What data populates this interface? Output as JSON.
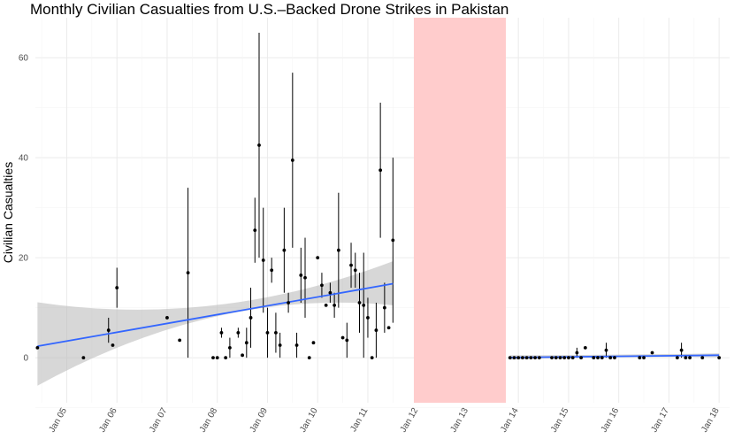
{
  "chart_data": {
    "type": "scatter",
    "title": "Monthly Civilian Casualties from U.S.–Backed Drone Strikes in Pakistan",
    "xlabel": "",
    "ylabel": "Civilian Casualties",
    "xlim": [
      "2004-06",
      "2018-03"
    ],
    "ylim": [
      -9,
      68
    ],
    "y_ticks": [
      0,
      20,
      40,
      60
    ],
    "x_ticks": [
      {
        "date": "2005-01",
        "label": "Jan 05"
      },
      {
        "date": "2006-01",
        "label": "Jan 06"
      },
      {
        "date": "2007-01",
        "label": "Jan 07"
      },
      {
        "date": "2008-01",
        "label": "Jan 08"
      },
      {
        "date": "2009-01",
        "label": "Jan 09"
      },
      {
        "date": "2010-01",
        "label": "Jan 10"
      },
      {
        "date": "2011-01",
        "label": "Jan 11"
      },
      {
        "date": "2012-01",
        "label": "Jan 12"
      },
      {
        "date": "2013-01",
        "label": "Jan 13"
      },
      {
        "date": "2014-01",
        "label": "Jan 14"
      },
      {
        "date": "2015-01",
        "label": "Jan 15"
      },
      {
        "date": "2016-01",
        "label": "Jan 16"
      },
      {
        "date": "2017-01",
        "label": "Jan 17"
      },
      {
        "date": "2018-01",
        "label": "Jan 18"
      }
    ],
    "grid": true,
    "legend": "none",
    "shaded_period": {
      "from": "2011-12",
      "to": "2013-10",
      "color": "#ffcccc"
    },
    "colors": {
      "point": "#000000",
      "trend": "#3366ff",
      "ribbon": "#bdbdbd"
    },
    "points": [
      {
        "date": "2004-06",
        "y": 2
      },
      {
        "date": "2005-05",
        "y": 0
      },
      {
        "date": "2005-11",
        "y": 5.5,
        "lo": 3,
        "hi": 8
      },
      {
        "date": "2005-12",
        "y": 2.5
      },
      {
        "date": "2006-01",
        "y": 14,
        "lo": 10,
        "hi": 18
      },
      {
        "date": "2007-01",
        "y": 8
      },
      {
        "date": "2007-04",
        "y": 3.5
      },
      {
        "date": "2007-06",
        "y": 17,
        "lo": 0,
        "hi": 34
      },
      {
        "date": "2007-12",
        "y": 0
      },
      {
        "date": "2008-01",
        "y": 0
      },
      {
        "date": "2008-02",
        "y": 5,
        "lo": 4,
        "hi": 6
      },
      {
        "date": "2008-03",
        "y": 0
      },
      {
        "date": "2008-04",
        "y": 2,
        "lo": 0,
        "hi": 4
      },
      {
        "date": "2008-06",
        "y": 5,
        "lo": 4,
        "hi": 6
      },
      {
        "date": "2008-07",
        "y": 0.5
      },
      {
        "date": "2008-08",
        "y": 3,
        "lo": 0,
        "hi": 6
      },
      {
        "date": "2008-09",
        "y": 8,
        "lo": 2,
        "hi": 14
      },
      {
        "date": "2008-10",
        "y": 25.5,
        "lo": 19,
        "hi": 32
      },
      {
        "date": "2008-11",
        "y": 42.5,
        "lo": 20,
        "hi": 65
      },
      {
        "date": "2008-12",
        "y": 19.5,
        "lo": 9,
        "hi": 30
      },
      {
        "date": "2009-01",
        "y": 5,
        "lo": 0,
        "hi": 10
      },
      {
        "date": "2009-02",
        "y": 17.5,
        "lo": 15,
        "hi": 20
      },
      {
        "date": "2009-03",
        "y": 5,
        "lo": 1,
        "hi": 9
      },
      {
        "date": "2009-04",
        "y": 2.5,
        "lo": 0,
        "hi": 5
      },
      {
        "date": "2009-05",
        "y": 21.5,
        "lo": 13,
        "hi": 30
      },
      {
        "date": "2009-06",
        "y": 11,
        "lo": 9,
        "hi": 13
      },
      {
        "date": "2009-07",
        "y": 39.5,
        "lo": 22,
        "hi": 57
      },
      {
        "date": "2009-08",
        "y": 2.5,
        "lo": 0,
        "hi": 5
      },
      {
        "date": "2009-09",
        "y": 16.5,
        "lo": 11,
        "hi": 22
      },
      {
        "date": "2009-10",
        "y": 16,
        "lo": 8,
        "hi": 24
      },
      {
        "date": "2009-11",
        "y": 0
      },
      {
        "date": "2009-12",
        "y": 3
      },
      {
        "date": "2010-01",
        "y": 20
      },
      {
        "date": "2010-02",
        "y": 14.5,
        "lo": 12,
        "hi": 17
      },
      {
        "date": "2010-03",
        "y": 10.5
      },
      {
        "date": "2010-04",
        "y": 13,
        "lo": 11,
        "hi": 15
      },
      {
        "date": "2010-05",
        "y": 10.5,
        "lo": 8,
        "hi": 13
      },
      {
        "date": "2010-06",
        "y": 21.5,
        "lo": 10,
        "hi": 33
      },
      {
        "date": "2010-07",
        "y": 4
      },
      {
        "date": "2010-08",
        "y": 3.5,
        "lo": 0,
        "hi": 7
      },
      {
        "date": "2010-09",
        "y": 18.5,
        "lo": 14,
        "hi": 23
      },
      {
        "date": "2010-10",
        "y": 17.5,
        "lo": 14,
        "hi": 21
      },
      {
        "date": "2010-11",
        "y": 11,
        "lo": 5,
        "hi": 17
      },
      {
        "date": "2010-12",
        "y": 10.5,
        "lo": 0,
        "hi": 21
      },
      {
        "date": "2011-01",
        "y": 8,
        "lo": 4,
        "hi": 12
      },
      {
        "date": "2011-02",
        "y": 0
      },
      {
        "date": "2011-03",
        "y": 5.5,
        "lo": 0,
        "hi": 11
      },
      {
        "date": "2011-04",
        "y": 37.5,
        "lo": 24,
        "hi": 51
      },
      {
        "date": "2011-05",
        "y": 10,
        "lo": 5,
        "hi": 15
      },
      {
        "date": "2011-06",
        "y": 6
      },
      {
        "date": "2011-07",
        "y": 23.5,
        "lo": 7,
        "hi": 40
      },
      {
        "date": "2013-11",
        "y": 0
      },
      {
        "date": "2013-12",
        "y": 0
      },
      {
        "date": "2014-01",
        "y": 0
      },
      {
        "date": "2014-02",
        "y": 0
      },
      {
        "date": "2014-03",
        "y": 0
      },
      {
        "date": "2014-04",
        "y": 0
      },
      {
        "date": "2014-05",
        "y": 0
      },
      {
        "date": "2014-06",
        "y": 0
      },
      {
        "date": "2014-09",
        "y": 0
      },
      {
        "date": "2014-10",
        "y": 0
      },
      {
        "date": "2014-11",
        "y": 0
      },
      {
        "date": "2014-12",
        "y": 0
      },
      {
        "date": "2015-01",
        "y": 0
      },
      {
        "date": "2015-02",
        "y": 0
      },
      {
        "date": "2015-03",
        "y": 1,
        "lo": 0,
        "hi": 2
      },
      {
        "date": "2015-04",
        "y": 0
      },
      {
        "date": "2015-05",
        "y": 2
      },
      {
        "date": "2015-07",
        "y": 0
      },
      {
        "date": "2015-08",
        "y": 0
      },
      {
        "date": "2015-09",
        "y": 0
      },
      {
        "date": "2015-10",
        "y": 1.5,
        "lo": 0,
        "hi": 3
      },
      {
        "date": "2015-11",
        "y": 0
      },
      {
        "date": "2015-12",
        "y": 0
      },
      {
        "date": "2016-06",
        "y": 0
      },
      {
        "date": "2016-07",
        "y": 0
      },
      {
        "date": "2016-09",
        "y": 1
      },
      {
        "date": "2017-03",
        "y": 0
      },
      {
        "date": "2017-04",
        "y": 1.5,
        "lo": 0,
        "hi": 3
      },
      {
        "date": "2017-05",
        "y": 0
      },
      {
        "date": "2017-06",
        "y": 0
      },
      {
        "date": "2017-09",
        "y": 0
      },
      {
        "date": "2018-01",
        "y": 0
      }
    ],
    "trend_segments": [
      {
        "from": "2004-06",
        "to": "2011-07",
        "y_from": 2.3,
        "y_to": 14.8,
        "band_from": [
          -5.6,
          11.1
        ],
        "band_mid": [
          8.2,
          10.5
        ],
        "band_to": [
          10.5,
          19.3
        ]
      },
      {
        "from": "2013-11",
        "to": "2018-01",
        "y_from": 0.05,
        "y_to": 0.5,
        "band_from": [
          -0.4,
          0.5
        ],
        "band_mid": [
          0.1,
          0.6
        ],
        "band_to": [
          0.1,
          0.9
        ]
      }
    ]
  }
}
